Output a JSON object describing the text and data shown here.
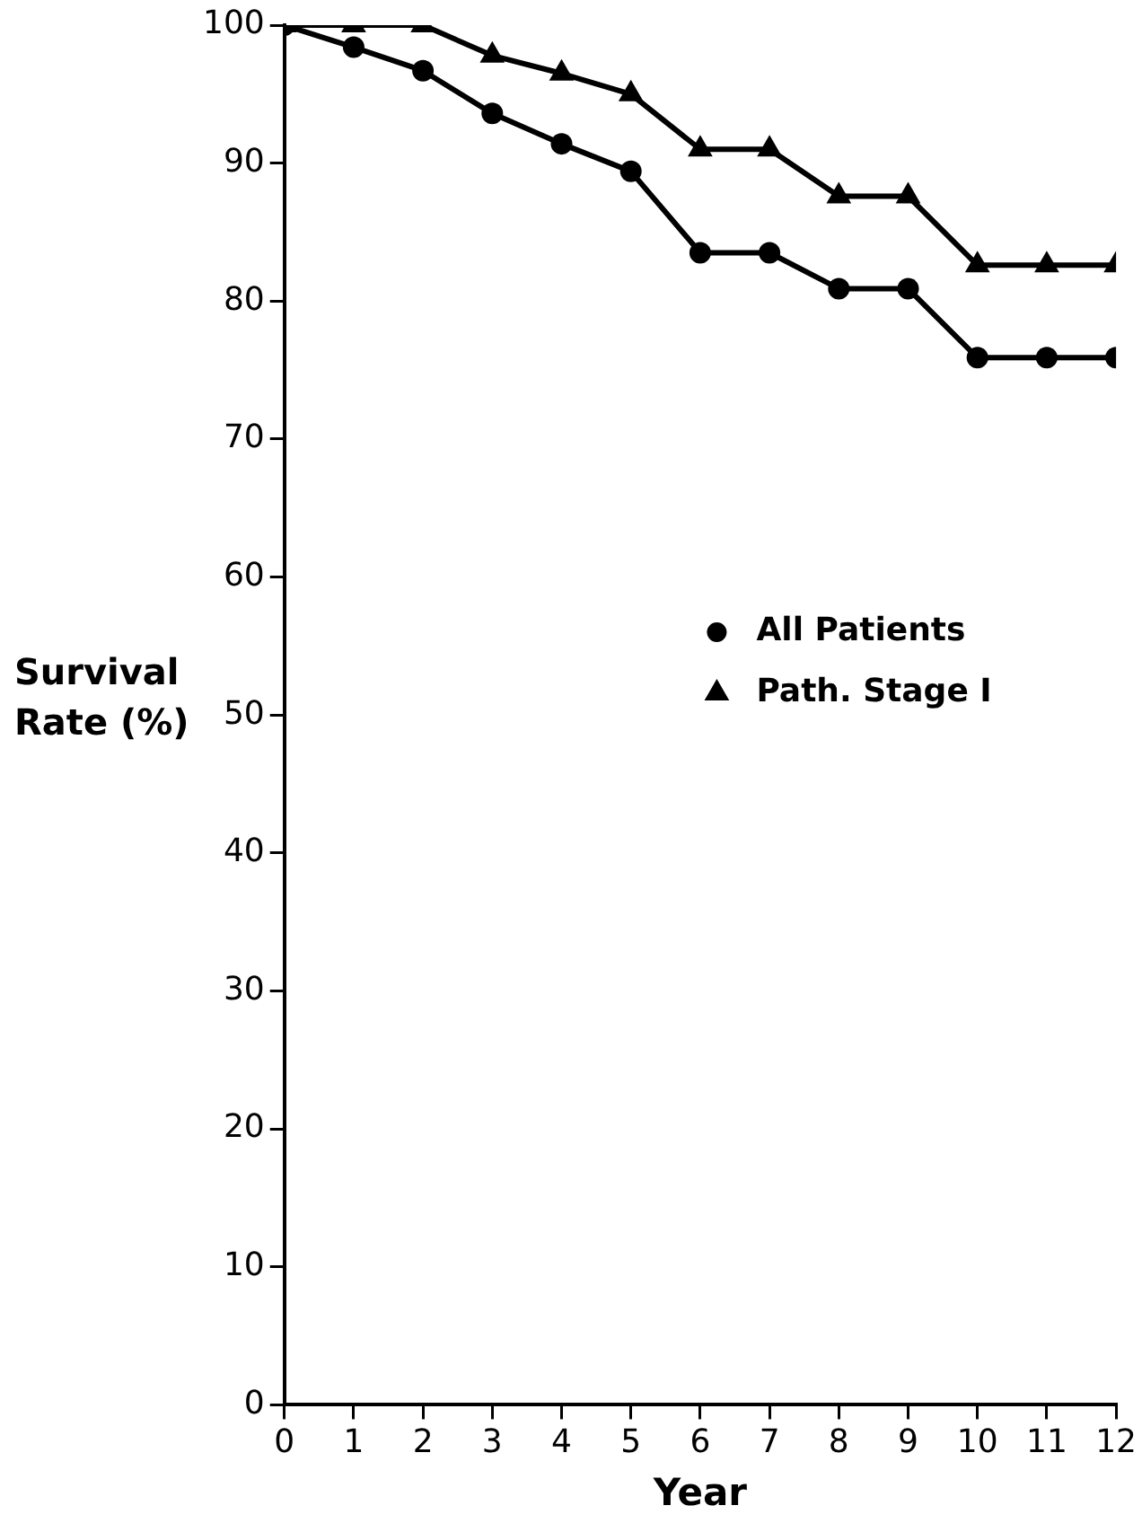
{
  "chart_data": {
    "type": "line",
    "xlabel": "Year",
    "ylabel": "Survival Rate (%)",
    "x": [
      0,
      1,
      2,
      3,
      4,
      5,
      6,
      7,
      8,
      9,
      10,
      11,
      12
    ],
    "series": [
      {
        "name": "All Patients",
        "color": "#000000",
        "marker": "circle",
        "values": [
          100,
          98.4,
          96.7,
          93.6,
          91.4,
          89.4,
          83.5,
          83.5,
          80.9,
          80.9,
          75.9,
          75.9,
          75.9
        ]
      },
      {
        "name": "Path. Stage I",
        "color": "#000000",
        "marker": "triangle",
        "values": [
          100,
          100,
          100,
          97.8,
          96.5,
          95,
          91,
          91,
          87.6,
          87.6,
          82.6,
          82.6,
          82.6
        ]
      }
    ],
    "xlim": [
      0,
      12
    ],
    "xticks": [
      0,
      1,
      2,
      3,
      4,
      5,
      6,
      7,
      8,
      9,
      10,
      11,
      12
    ],
    "ylim": [
      0,
      100
    ],
    "yticks": [
      0,
      10,
      20,
      30,
      40,
      50,
      60,
      70,
      80,
      90,
      100
    ],
    "grid": false,
    "legend": "right",
    "line_style": "solid"
  }
}
